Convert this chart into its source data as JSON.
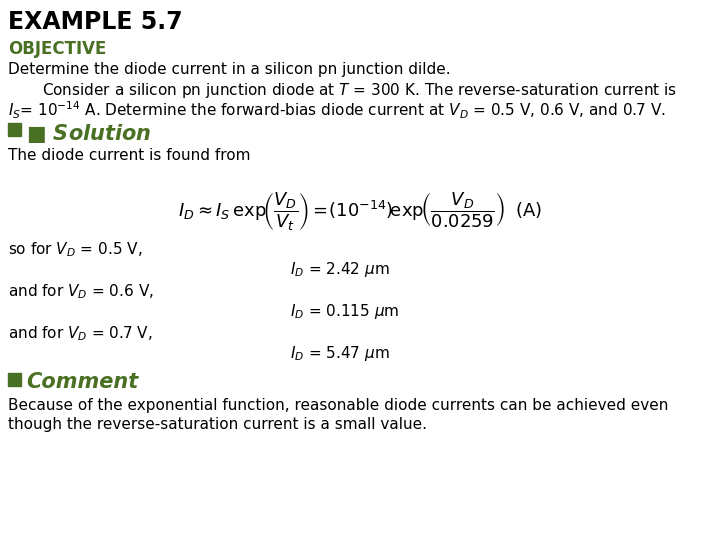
{
  "title": "EXAMPLE 5.7",
  "objective": "OBJECTIVE",
  "line1": "Determine the diode current in a silicon pn junction dilde.",
  "line2": "Consider a silicon pn junction diode at $T$ = 300 K. The reverse-saturation current is",
  "line3_a": "$I_S$",
  "line3_b": "= 10",
  "line3_c": "-14",
  "line3_d": " A. Determine the forward-bias diode current at $V_D$ = 0.5 V, 0.6 V, and 0.7 V.",
  "solution_header": "Solution",
  "solution_line1": "The diode current is found from",
  "so_for": "so for $V_D$ = 0.5 V,",
  "id1_label": "$I_D$ = 2.42 $\\mu$m",
  "and_for1": "and for $V_D$ = 0.6 V,",
  "id2_label": "$I_D$ = 0.115 $\\mu$m",
  "and_for2": "and for $V_D$ = 0.7 V,",
  "id3_label": "$I_D$ = 5.47 $\\mu$m",
  "comment_header": "Comment",
  "comment1": "Because of the exponential function, reasonable diode currents can be achieved even",
  "comment2": "though the reverse-saturation current is a small value.",
  "title_color": "#000000",
  "objective_color": "#4a7023",
  "solution_color": "#4a7023",
  "comment_color": "#4a7023",
  "body_color": "#000000",
  "bg_color": "#ffffff",
  "square_color": "#4a7023",
  "title_fontsize": 17,
  "objective_fontsize": 12,
  "body_fontsize": 11,
  "section_fontsize": 15
}
